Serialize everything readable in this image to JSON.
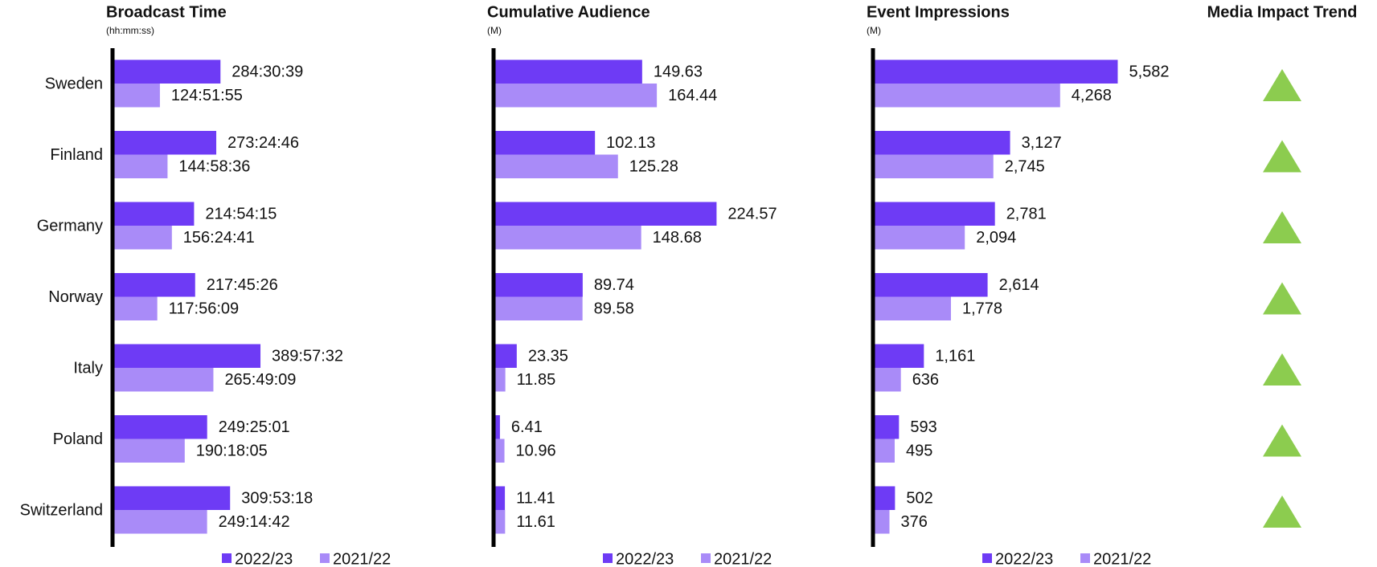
{
  "chart_data": [
    {
      "type": "hbar",
      "title": "Broadcast Time",
      "subtitle": "(hh:mm:ss)",
      "categories": [
        "Sweden",
        "Finland",
        "Germany",
        "Norway",
        "Italy",
        "Poland",
        "Switzerland"
      ],
      "xlim": [
        0,
        890
      ],
      "series": [
        {
          "name": "2022/23",
          "color": "#6e3bf5",
          "values": [
            284.5108,
            273.4128,
            214.9042,
            217.7572,
            389.9589,
            249.4169,
            309.8883
          ],
          "value_labels": [
            "284:30:39",
            "273:24:46",
            "214:54:15",
            "217:45:26",
            "389:57:32",
            "249:25:01",
            "309:53:18"
          ]
        },
        {
          "name": "2021/22",
          "color": "#a98bf8",
          "values": [
            124.8653,
            144.9767,
            156.4114,
            117.9358,
            265.8192,
            190.3014,
            249.245
          ],
          "value_labels": [
            "124:51:55",
            "144:58:36",
            "156:24:41",
            "117:56:09",
            "265:49:09",
            "190:18:05",
            "249:14:42"
          ]
        }
      ]
    },
    {
      "type": "hbar",
      "title": "Cumulative Audience",
      "subtitle": "(M)",
      "xlim": [
        0,
        340
      ],
      "series": [
        {
          "name": "2022/23",
          "color": "#6e3bf5",
          "values": [
            149.63,
            102.13,
            224.57,
            89.74,
            23.35,
            6.41,
            11.41
          ]
        },
        {
          "name": "2021/22",
          "color": "#a98bf8",
          "values": [
            164.44,
            125.28,
            148.68,
            89.58,
            11.85,
            10.96,
            11.61
          ]
        }
      ]
    },
    {
      "type": "hbar",
      "title": "Event Impressions",
      "subtitle": "(M)",
      "xlim": [
        0,
        7700
      ],
      "series": [
        {
          "name": "2022/23",
          "color": "#6e3bf5",
          "values": [
            5582,
            3127,
            2781,
            2614,
            1161,
            593,
            502
          ],
          "value_labels": [
            "5,582",
            "3,127",
            "2,781",
            "2,614",
            "1,161",
            "593",
            "502"
          ]
        },
        {
          "name": "2021/22",
          "color": "#a98bf8",
          "values": [
            4268,
            2745,
            2094,
            1778,
            636,
            495,
            376
          ],
          "value_labels": [
            "4,268",
            "2,745",
            "2,094",
            "1,778",
            "636",
            "495",
            "376"
          ]
        }
      ]
    },
    {
      "type": "trend",
      "title": "Media Impact Trend",
      "color": "#8ccc4f",
      "trend": [
        "up",
        "up",
        "up",
        "up",
        "up",
        "up",
        "up"
      ]
    }
  ]
}
